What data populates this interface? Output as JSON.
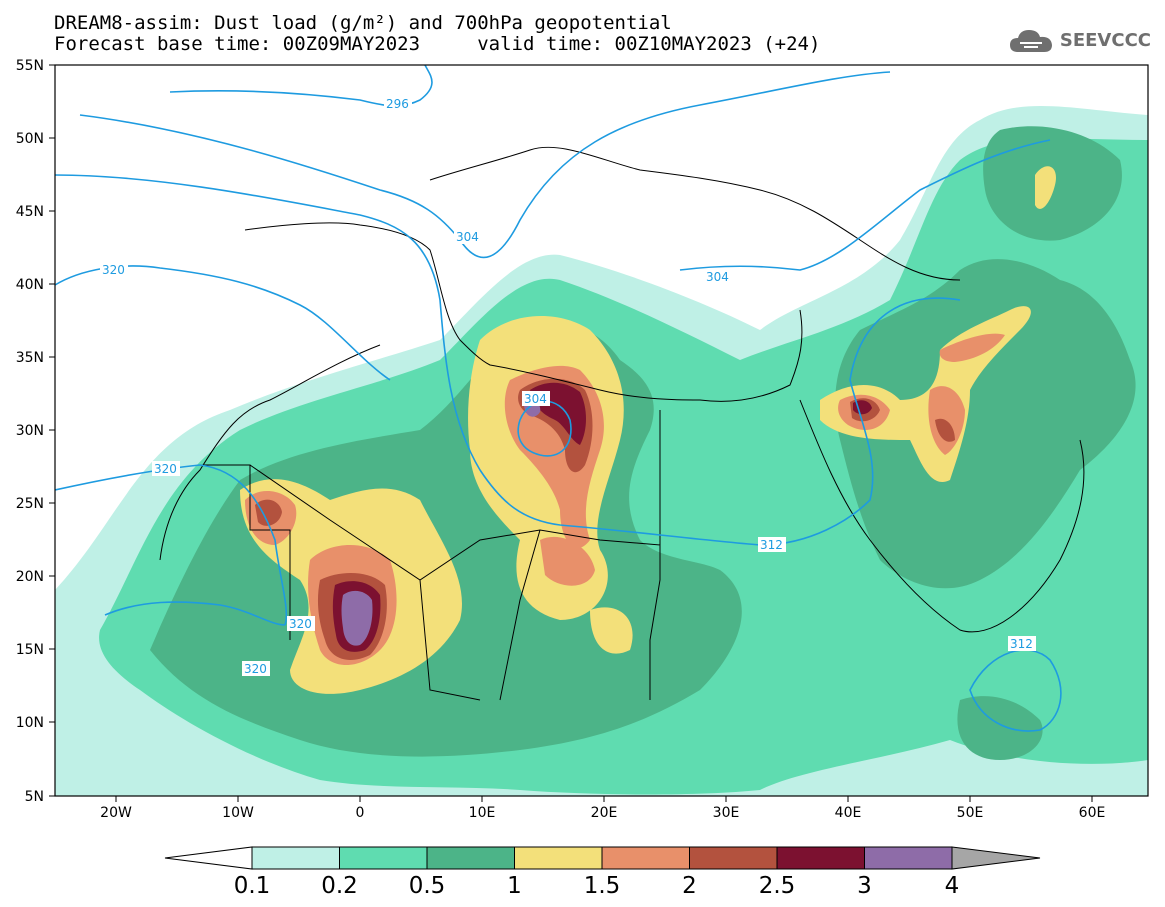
{
  "title_line1": "DREAM8-assim: Dust load (g/m²) and 700hPa geopotential",
  "title_line2": "Forecast base time: 00Z09MAY2023     valid time: 00Z10MAY2023 (+24)",
  "logo_text": "SEEVCCC",
  "lat_labels": [
    "55N",
    "50N",
    "45N",
    "40N",
    "35N",
    "30N",
    "25N",
    "20N",
    "15N",
    "10N",
    "5N"
  ],
  "lon_labels": [
    "20W",
    "10W",
    "0",
    "10E",
    "20E",
    "30E",
    "40E",
    "50E",
    "60E"
  ],
  "contour_labels": [
    "296",
    "304",
    "304",
    "304",
    "312",
    "312",
    "320",
    "320",
    "320",
    "320"
  ],
  "colorbar": {
    "levels": [
      "0.1",
      "0.2",
      "0.5",
      "1",
      "1.5",
      "2",
      "2.5",
      "3",
      "4"
    ],
    "colors": [
      "#bff0e6",
      "#5fdcb0",
      "#4cb488",
      "#f3e07a",
      "#e8906a",
      "#b3523e",
      "#7c1130",
      "#8e6ca8"
    ],
    "under_color": "#ffffff",
    "over_color": "#a6a6a6"
  }
}
